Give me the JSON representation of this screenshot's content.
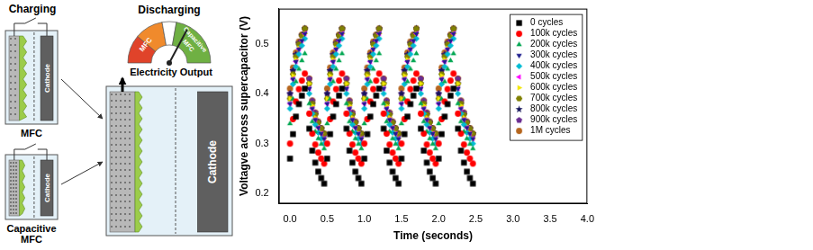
{
  "diagram": {
    "charging_label": "Charging",
    "discharging_label": "Discharging",
    "gauge_labels": [
      "MFC",
      "Capacitive MFC"
    ],
    "output_label": "Electricity Output",
    "cells": [
      {
        "label": "MFC",
        "cathode": "Cathode"
      },
      {
        "label": "Capacitive MFC",
        "cathode": "Cathode"
      },
      {
        "cathode": "Cathode"
      }
    ]
  },
  "chart_data": {
    "type": "scatter",
    "x_label": "Time (seconds)",
    "y_label": "Voltagve across supercapacitor (V)",
    "xlim": [
      -0.15,
      4.0
    ],
    "xticks": [
      {
        "value": 0,
        "label": "0.0"
      },
      0.5,
      {
        "value": 1,
        "label": "1.0"
      },
      1.5,
      {
        "value": 2,
        "label": "2.0"
      },
      2.5,
      {
        "value": 3,
        "label": "3.0"
      },
      3.5,
      {
        "value": 4,
        "label": "4.0"
      }
    ],
    "ylim": [
      0.18,
      0.57
    ],
    "yticks": [
      0.2,
      0.3,
      0.4,
      0.5
    ],
    "grid": false,
    "legend": "upper right",
    "x": [
      0,
      0.04,
      0.08,
      0.12,
      0.16,
      0.2,
      0.26,
      0.3,
      0.34,
      0.38,
      0.42,
      0.46,
      0.5,
      0.54,
      0.58,
      0.62,
      0.66,
      0.7,
      0.76,
      0.8,
      0.84,
      0.88,
      0.92,
      0.96,
      1,
      1.04,
      1.08,
      1.12,
      1.16,
      1.2,
      1.26,
      1.3,
      1.34,
      1.38,
      1.42,
      1.46,
      1.5,
      1.54,
      1.58,
      1.62,
      1.66,
      1.7,
      1.76,
      1.8,
      1.84,
      1.88,
      1.92,
      1.96,
      2,
      2.04,
      2.08,
      2.12,
      2.16,
      2.2,
      2.26,
      2.3,
      2.34,
      2.38,
      2.42,
      2.46
    ],
    "series": [
      {
        "name": "0 cycles",
        "color": "#000000",
        "marker": "square",
        "values": [
          0.27,
          0.319,
          0.354,
          0.379,
          0.396,
          0.41,
          0.33,
          0.286,
          0.262,
          0.244,
          0.231,
          0.22,
          0.27,
          0.319,
          0.354,
          0.379,
          0.396,
          0.41,
          0.33,
          0.286,
          0.262,
          0.244,
          0.231,
          0.22,
          0.27,
          0.319,
          0.354,
          0.379,
          0.396,
          0.41,
          0.33,
          0.286,
          0.262,
          0.244,
          0.231,
          0.22,
          0.27,
          0.319,
          0.354,
          0.379,
          0.396,
          0.41,
          0.33,
          0.286,
          0.262,
          0.244,
          0.231,
          0.22,
          0.27,
          0.319,
          0.354,
          0.379,
          0.396,
          0.41,
          0.33,
          0.286,
          0.262,
          0.244,
          0.231,
          0.22
        ]
      },
      {
        "name": "100k cycles",
        "color": "#ff0000",
        "marker": "circle",
        "values": [
          0.3,
          0.349,
          0.384,
          0.409,
          0.426,
          0.44,
          0.36,
          0.32,
          0.298,
          0.282,
          0.27,
          0.26,
          0.3,
          0.349,
          0.384,
          0.409,
          0.426,
          0.44,
          0.36,
          0.32,
          0.298,
          0.282,
          0.27,
          0.26,
          0.3,
          0.349,
          0.384,
          0.409,
          0.426,
          0.44,
          0.36,
          0.32,
          0.298,
          0.282,
          0.27,
          0.26,
          0.3,
          0.349,
          0.384,
          0.409,
          0.426,
          0.44,
          0.36,
          0.32,
          0.298,
          0.282,
          0.27,
          0.26,
          0.3,
          0.349,
          0.384,
          0.409,
          0.426,
          0.44,
          0.36,
          0.32,
          0.298,
          0.282,
          0.27,
          0.26
        ]
      },
      {
        "name": "200k cycles",
        "color": "#00a651",
        "marker": "triangle",
        "values": [
          0.34,
          0.389,
          0.424,
          0.449,
          0.466,
          0.48,
          0.38,
          0.344,
          0.324,
          0.31,
          0.299,
          0.29,
          0.34,
          0.389,
          0.424,
          0.449,
          0.466,
          0.48,
          0.38,
          0.344,
          0.324,
          0.31,
          0.299,
          0.29,
          0.34,
          0.389,
          0.424,
          0.449,
          0.466,
          0.48,
          0.38,
          0.344,
          0.324,
          0.31,
          0.299,
          0.29,
          0.34,
          0.389,
          0.424,
          0.449,
          0.466,
          0.48,
          0.38,
          0.344,
          0.324,
          0.31,
          0.299,
          0.29,
          0.34,
          0.389,
          0.424,
          0.449,
          0.466,
          0.48,
          0.38,
          0.344,
          0.324,
          0.31,
          0.299,
          0.29
        ]
      },
      {
        "name": "300k cycles",
        "color": "#1f1f8f",
        "marker": "triangle-down",
        "values": [
          0.38,
          0.429,
          0.464,
          0.489,
          0.506,
          0.52,
          0.41,
          0.37,
          0.348,
          0.332,
          0.32,
          0.31,
          0.38,
          0.429,
          0.464,
          0.489,
          0.506,
          0.52,
          0.41,
          0.37,
          0.348,
          0.332,
          0.32,
          0.31,
          0.38,
          0.429,
          0.464,
          0.489,
          0.506,
          0.52,
          0.41,
          0.37,
          0.348,
          0.332,
          0.32,
          0.31,
          0.38,
          0.429,
          0.464,
          0.489,
          0.506,
          0.52,
          0.41,
          0.37,
          0.348,
          0.332,
          0.32,
          0.31,
          0.38,
          0.429,
          0.464,
          0.489,
          0.506,
          0.52,
          0.41,
          0.37,
          0.348,
          0.332,
          0.32,
          0.31
        ]
      },
      {
        "name": "400k cycles",
        "color": "#00bcd4",
        "marker": "diamond",
        "values": [
          0.37,
          0.419,
          0.454,
          0.479,
          0.496,
          0.51,
          0.4,
          0.36,
          0.338,
          0.322,
          0.31,
          0.3,
          0.37,
          0.419,
          0.454,
          0.479,
          0.496,
          0.51,
          0.4,
          0.36,
          0.338,
          0.322,
          0.31,
          0.3,
          0.37,
          0.419,
          0.454,
          0.479,
          0.496,
          0.51,
          0.4,
          0.36,
          0.338,
          0.322,
          0.31,
          0.3,
          0.37,
          0.419,
          0.454,
          0.479,
          0.496,
          0.51,
          0.4,
          0.36,
          0.338,
          0.322,
          0.31,
          0.3,
          0.37,
          0.419,
          0.454,
          0.479,
          0.496,
          0.51,
          0.4,
          0.36,
          0.338,
          0.322,
          0.31,
          0.3
        ]
      },
      {
        "name": "500k cycles",
        "color": "#ff00ff",
        "marker": "triangle-left",
        "values": [
          0.38,
          0.429,
          0.464,
          0.489,
          0.506,
          0.52,
          0.41,
          0.37,
          0.348,
          0.332,
          0.32,
          0.31,
          0.38,
          0.429,
          0.464,
          0.489,
          0.506,
          0.52,
          0.41,
          0.37,
          0.348,
          0.332,
          0.32,
          0.31,
          0.38,
          0.429,
          0.464,
          0.489,
          0.506,
          0.52,
          0.41,
          0.37,
          0.348,
          0.332,
          0.32,
          0.31,
          0.38,
          0.429,
          0.464,
          0.489,
          0.506,
          0.52,
          0.41,
          0.37,
          0.348,
          0.332,
          0.32,
          0.31,
          0.38,
          0.429,
          0.464,
          0.489,
          0.506,
          0.52,
          0.41,
          0.37,
          0.348,
          0.332,
          0.32,
          0.31
        ]
      },
      {
        "name": "600k cycles",
        "color": "#f2e600",
        "marker": "triangle-right",
        "values": [
          0.39,
          0.436,
          0.468,
          0.491,
          0.507,
          0.52,
          0.42,
          0.376,
          0.352,
          0.334,
          0.321,
          0.31,
          0.39,
          0.436,
          0.468,
          0.491,
          0.507,
          0.52,
          0.42,
          0.376,
          0.352,
          0.334,
          0.321,
          0.31,
          0.39,
          0.436,
          0.468,
          0.491,
          0.507,
          0.52,
          0.42,
          0.376,
          0.352,
          0.334,
          0.321,
          0.31,
          0.39,
          0.436,
          0.468,
          0.491,
          0.507,
          0.52,
          0.42,
          0.376,
          0.352,
          0.334,
          0.321,
          0.31,
          0.39,
          0.436,
          0.468,
          0.491,
          0.507,
          0.52,
          0.42,
          0.376,
          0.352,
          0.334,
          0.321,
          0.31
        ]
      },
      {
        "name": "700k cycles",
        "color": "#808000",
        "marker": "hexagon",
        "values": [
          0.39,
          0.439,
          0.474,
          0.499,
          0.516,
          0.53,
          0.42,
          0.38,
          0.358,
          0.342,
          0.33,
          0.32,
          0.39,
          0.439,
          0.474,
          0.499,
          0.516,
          0.53,
          0.42,
          0.38,
          0.358,
          0.342,
          0.33,
          0.32,
          0.39,
          0.439,
          0.474,
          0.499,
          0.516,
          0.53,
          0.42,
          0.38,
          0.358,
          0.342,
          0.33,
          0.32,
          0.39,
          0.439,
          0.474,
          0.499,
          0.516,
          0.53,
          0.42,
          0.38,
          0.358,
          0.342,
          0.33,
          0.32,
          0.39,
          0.439,
          0.474,
          0.499,
          0.516,
          0.53,
          0.42,
          0.38,
          0.358,
          0.342,
          0.33,
          0.32
        ]
      },
      {
        "name": "800k cycles",
        "color": "#14145a",
        "marker": "star",
        "values": [
          0.4,
          0.446,
          0.478,
          0.501,
          0.517,
          0.53,
          0.42,
          0.38,
          0.358,
          0.342,
          0.33,
          0.32,
          0.4,
          0.446,
          0.478,
          0.501,
          0.517,
          0.53,
          0.42,
          0.38,
          0.358,
          0.342,
          0.33,
          0.32,
          0.4,
          0.446,
          0.478,
          0.501,
          0.517,
          0.53,
          0.42,
          0.38,
          0.358,
          0.342,
          0.33,
          0.32,
          0.4,
          0.446,
          0.478,
          0.501,
          0.517,
          0.53,
          0.42,
          0.38,
          0.358,
          0.342,
          0.33,
          0.32,
          0.4,
          0.446,
          0.478,
          0.501,
          0.517,
          0.53,
          0.42,
          0.38,
          0.358,
          0.342,
          0.33,
          0.32
        ]
      },
      {
        "name": "900k cycles",
        "color": "#6a2c91",
        "marker": "pentagon",
        "values": [
          0.4,
          0.446,
          0.478,
          0.501,
          0.517,
          0.53,
          0.43,
          0.386,
          0.362,
          0.344,
          0.331,
          0.32,
          0.4,
          0.446,
          0.478,
          0.501,
          0.517,
          0.53,
          0.43,
          0.386,
          0.362,
          0.344,
          0.331,
          0.32,
          0.4,
          0.446,
          0.478,
          0.501,
          0.517,
          0.53,
          0.43,
          0.386,
          0.362,
          0.344,
          0.331,
          0.32,
          0.4,
          0.446,
          0.478,
          0.501,
          0.517,
          0.53,
          0.43,
          0.386,
          0.362,
          0.344,
          0.331,
          0.32,
          0.4,
          0.446,
          0.478,
          0.501,
          0.517,
          0.53,
          0.43,
          0.386,
          0.362,
          0.344,
          0.331,
          0.32
        ]
      },
      {
        "name": "1M cycles",
        "color": "#b5651d",
        "marker": "circle",
        "values": [
          0.41,
          0.452,
          0.482,
          0.504,
          0.518,
          0.53,
          0.43,
          0.386,
          0.362,
          0.344,
          0.331,
          0.32,
          0.41,
          0.452,
          0.482,
          0.504,
          0.518,
          0.53,
          0.43,
          0.386,
          0.362,
          0.344,
          0.331,
          0.32,
          0.41,
          0.452,
          0.482,
          0.504,
          0.518,
          0.53,
          0.43,
          0.386,
          0.362,
          0.344,
          0.331,
          0.32,
          0.41,
          0.452,
          0.482,
          0.504,
          0.518,
          0.53,
          0.43,
          0.386,
          0.362,
          0.344,
          0.331,
          0.32,
          0.41,
          0.452,
          0.482,
          0.504,
          0.518,
          0.53,
          0.43,
          0.386,
          0.362,
          0.344,
          0.331,
          0.32
        ]
      }
    ]
  }
}
